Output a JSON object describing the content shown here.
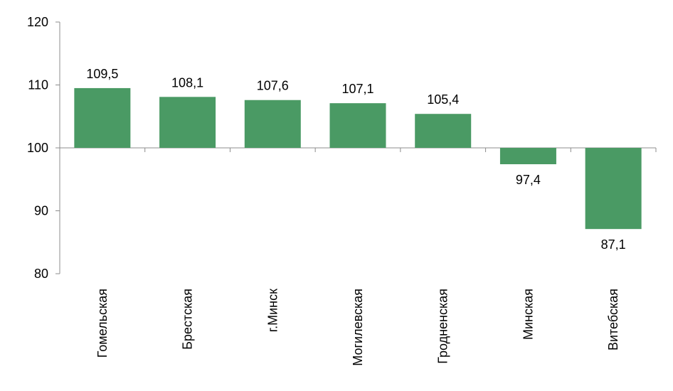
{
  "chart_data": {
    "type": "bar",
    "baseline": 100,
    "ylim": [
      80,
      120
    ],
    "yticks": [
      80,
      90,
      100,
      110,
      120
    ],
    "ytick_labels": [
      "80",
      "90",
      "100",
      "110",
      "120"
    ],
    "categories": [
      "Гомельская",
      "Брестская",
      "г.Минск",
      "Могилевская",
      "Гродненская",
      "Минская",
      "Витебская"
    ],
    "values": [
      109.5,
      108.1,
      107.6,
      107.1,
      105.4,
      97.4,
      87.1
    ],
    "value_labels": [
      "109,5",
      "108,1",
      "107,6",
      "107,1",
      "105,4",
      "97,4",
      "87,1"
    ],
    "bar_color": "#4a9a64",
    "axis_color": "#8c8c8c",
    "grid": false,
    "legend": "none",
    "title": "",
    "xlabel": "",
    "ylabel": ""
  }
}
